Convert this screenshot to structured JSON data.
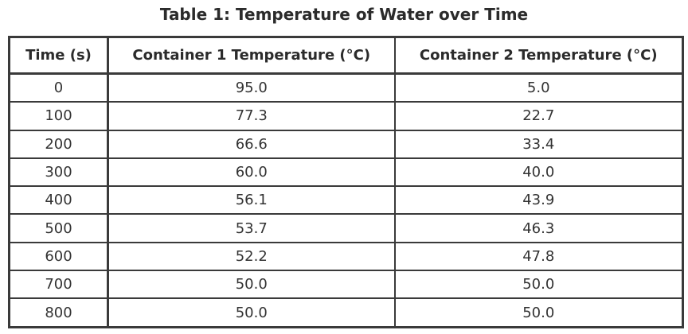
{
  "table": {
    "caption": "Table 1: Temperature of Water over Time",
    "headers": [
      "Time (s)",
      "Container 1 Temperature (°C)",
      "Container 2 Temperature (°C)"
    ],
    "rows": [
      [
        "0",
        "95.0",
        "5.0"
      ],
      [
        "100",
        "77.3",
        "22.7"
      ],
      [
        "200",
        "66.6",
        "33.4"
      ],
      [
        "300",
        "60.0",
        "40.0"
      ],
      [
        "400",
        "56.1",
        "43.9"
      ],
      [
        "500",
        "53.7",
        "46.3"
      ],
      [
        "600",
        "52.2",
        "47.8"
      ],
      [
        "700",
        "50.0",
        "50.0"
      ],
      [
        "800",
        "50.0",
        "50.0"
      ]
    ]
  },
  "chart_data": {
    "type": "table",
    "title": "Table 1: Temperature of Water over Time",
    "columns": [
      "Time (s)",
      "Container 1 Temperature (°C)",
      "Container 2 Temperature (°C)"
    ],
    "x": [
      0,
      100,
      200,
      300,
      400,
      500,
      600,
      700,
      800
    ],
    "series": [
      {
        "name": "Container 1 Temperature (°C)",
        "values": [
          95.0,
          77.3,
          66.6,
          60.0,
          56.1,
          53.7,
          52.2,
          50.0,
          50.0
        ]
      },
      {
        "name": "Container 2 Temperature (°C)",
        "values": [
          5.0,
          22.7,
          33.4,
          40.0,
          43.9,
          46.3,
          47.8,
          50.0,
          50.0
        ]
      }
    ]
  }
}
